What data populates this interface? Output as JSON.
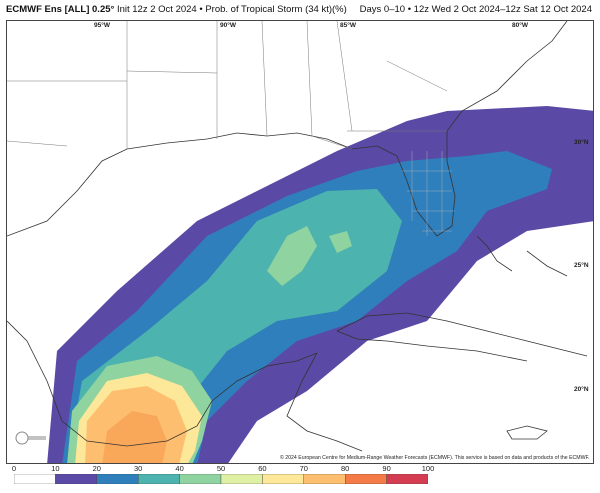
{
  "header": {
    "model": "ECMWF Ens [ALL] 0.25°",
    "init": "Init 12z 2 Oct 2024",
    "product": "Prob. of Tropical Storm (34 kt)(%)",
    "valid": "Days 0–10 • 12z Wed 2 Oct 2024–12z Sat 12 Oct 2024"
  },
  "axes": {
    "lon_labels": [
      "95°W",
      "90°W",
      "85°W",
      "80°W"
    ],
    "lat_labels": [
      "30°N",
      "25°N",
      "20°N"
    ]
  },
  "credit": "© 2024 European Centre for Medium-Range Weather Forecasts (ECMWF). This service is based on data and products of the ECMWF.",
  "colorbar": {
    "ticks": [
      "0",
      "10",
      "20",
      "30",
      "40",
      "50",
      "60",
      "70",
      "80",
      "90",
      "100"
    ],
    "colors": [
      "#ffffff",
      "#5b4aa5",
      "#2f7fbd",
      "#4db3ae",
      "#8fd3a0",
      "#dff0a5",
      "#fde798",
      "#fdbf6f",
      "#f47a47",
      "#d43d51",
      "#9e0142"
    ]
  }
}
